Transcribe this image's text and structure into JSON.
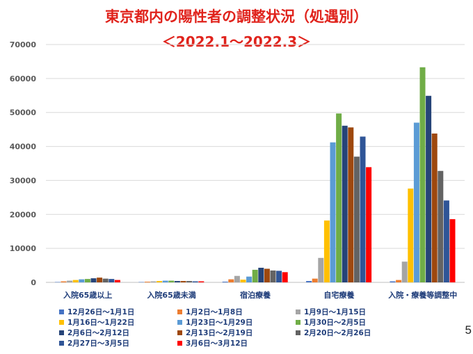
{
  "header": {
    "title": "東京都内の陽性者の調整状況（処遇別）",
    "subtitle": "＜2022.1～2022.3＞"
  },
  "page_number": "5",
  "chart_data": {
    "type": "bar",
    "title": "東京都内の陽性者の調整状況（処遇別）",
    "subtitle": "＜2022.1～2022.3＞",
    "xlabel": "",
    "ylabel": "",
    "ylim": [
      0,
      70000
    ],
    "yticks": [
      0,
      10000,
      20000,
      30000,
      40000,
      50000,
      60000,
      70000
    ],
    "grid": true,
    "legend_position": "bottom",
    "categories": [
      "入院65歳以上",
      "入院65歳未満",
      "宿泊療養",
      "自宅療養",
      "入院・療養等調整中"
    ],
    "series": [
      {
        "name": "12月26日～1月1日",
        "color": "#4472c4",
        "values": [
          100,
          100,
          200,
          400,
          300
        ]
      },
      {
        "name": "1月2日～1月8日",
        "color": "#ed7d31",
        "values": [
          300,
          200,
          900,
          1100,
          700
        ]
      },
      {
        "name": "1月9日～1月15日",
        "color": "#a5a5a5",
        "values": [
          500,
          300,
          1900,
          7200,
          6100
        ]
      },
      {
        "name": "1月16日～1月22日",
        "color": "#ffc000",
        "values": [
          700,
          400,
          800,
          18200,
          27600
        ]
      },
      {
        "name": "1月23日～1月29日",
        "color": "#5b9bd5",
        "values": [
          900,
          500,
          1700,
          41200,
          47000
        ]
      },
      {
        "name": "1月30日～2月5日",
        "color": "#70ad47",
        "values": [
          1000,
          500,
          3700,
          49700,
          63300
        ]
      },
      {
        "name": "2月6日～2月12日",
        "color": "#264478",
        "values": [
          1200,
          400,
          4300,
          46100,
          54900
        ]
      },
      {
        "name": "2月13日～2月19日",
        "color": "#9e480e",
        "values": [
          1400,
          400,
          4000,
          45600,
          43800
        ]
      },
      {
        "name": "2月20日～2月26日",
        "color": "#636363",
        "values": [
          1100,
          400,
          3500,
          37000,
          32800
        ]
      },
      {
        "name": "2月27日～3月5日",
        "color": "#2f5597",
        "values": [
          1000,
          300,
          3400,
          42900,
          24100
        ]
      },
      {
        "name": "3月6日～3月12日",
        "color": "#ff0000",
        "values": [
          700,
          300,
          3000,
          33900,
          18600
        ]
      }
    ]
  }
}
